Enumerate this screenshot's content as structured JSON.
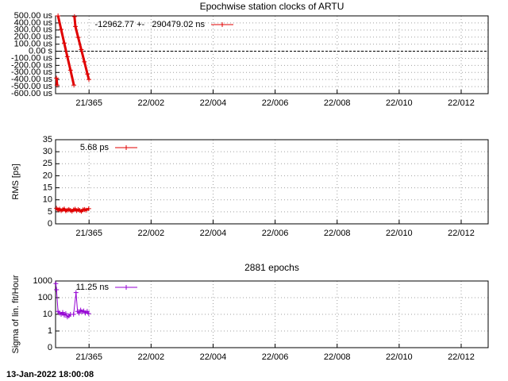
{
  "chart_data": [
    {
      "type": "line",
      "title": "Epochwise station clocks of ARTU",
      "x": [
        363.95,
        363.97,
        null,
        364.0,
        364.1,
        364.2,
        364.3,
        364.4,
        364.51,
        null,
        364.53,
        364.56,
        364.65,
        364.75,
        364.85,
        364.95,
        364.995
      ],
      "series": [
        {
          "name": "-12962.77 +-   290479.02 ns",
          "color": "#e00000",
          "values": [
            -380,
            -480,
            null,
            500,
            308,
            116,
            -76,
            -268,
            -480,
            null,
            490,
            350,
            195,
            23,
            -150,
            -322,
            -400
          ]
        }
      ],
      "xlim": [
        363.92,
        377.87
      ],
      "xticks": [
        {
          "value": 365,
          "label": "21/365"
        },
        {
          "value": 367,
          "label": "22/002"
        },
        {
          "value": 369,
          "label": "22/004"
        },
        {
          "value": 371,
          "label": "22/006"
        },
        {
          "value": 373,
          "label": "22/008"
        },
        {
          "value": 375,
          "label": "22/010"
        },
        {
          "value": 377,
          "label": "22/012"
        }
      ],
      "ylim": [
        -600,
        500
      ],
      "yticks": [
        {
          "value": 500,
          "label": "500.00 us"
        },
        {
          "value": 400,
          "label": "400.00 us"
        },
        {
          "value": 300,
          "label": "300.00 us"
        },
        {
          "value": 200,
          "label": "200.00 us"
        },
        {
          "value": 100,
          "label": "100.00 us"
        },
        {
          "value": 0,
          "label": "0.00 s"
        },
        {
          "value": -100,
          "label": "-100.00 us"
        },
        {
          "value": -200,
          "label": "-200.00 us"
        },
        {
          "value": -300,
          "label": "-300.00 us"
        },
        {
          "value": -400,
          "label": "-400.00 us"
        },
        {
          "value": -500,
          "label": "-500.00 us"
        },
        {
          "value": -600,
          "label": "-600.00 us"
        }
      ],
      "grid": true,
      "zeroaxis": true
    },
    {
      "type": "line",
      "ylabel": "RMS [ps]",
      "x": [
        363.95,
        364.0,
        364.05,
        364.1,
        364.15,
        364.2,
        364.25,
        364.3,
        364.35,
        364.4,
        364.45,
        364.5,
        364.55,
        364.6,
        364.65,
        364.7,
        364.75,
        364.8,
        364.85,
        364.9,
        364.99
      ],
      "series": [
        {
          "name": "5.68 ps",
          "color": "#e00000",
          "values": [
            6.5,
            5.8,
            6.1,
            5.5,
            5.9,
            6.2,
            5.4,
            5.7,
            6.0,
            5.6,
            5.3,
            5.8,
            6.1,
            5.5,
            5.9,
            5.6,
            5.2,
            5.8,
            6.0,
            5.7,
            6.3
          ]
        }
      ],
      "xlim": [
        363.92,
        377.87
      ],
      "xticks": [
        {
          "value": 365,
          "label": "21/365"
        },
        {
          "value": 367,
          "label": "22/002"
        },
        {
          "value": 369,
          "label": "22/004"
        },
        {
          "value": 371,
          "label": "22/006"
        },
        {
          "value": 373,
          "label": "22/008"
        },
        {
          "value": 375,
          "label": "22/010"
        },
        {
          "value": 377,
          "label": "22/012"
        }
      ],
      "ylim": [
        0,
        35
      ],
      "yticks": [
        0,
        5,
        10,
        15,
        20,
        25,
        30,
        35
      ],
      "grid": true
    },
    {
      "type": "line",
      "title": "2881 epochs",
      "ylabel": "Sigma of lin. fit/Hour",
      "x": [
        363.93,
        363.95,
        364.0,
        364.05,
        364.1,
        364.15,
        364.2,
        364.25,
        364.3,
        364.35,
        364.4,
        364.5,
        364.58,
        364.63,
        364.68,
        364.73,
        364.78,
        364.83,
        364.88,
        364.94,
        364.99
      ],
      "series": [
        {
          "name": "11.25 ns",
          "color": "#9400d3",
          "values": [
            700,
            300,
            15,
            12,
            10,
            13,
            9,
            11,
            7,
            8,
            10,
            10,
            200,
            15,
            12,
            18,
            14,
            16,
            12,
            15,
            11
          ]
        }
      ],
      "xlim": [
        363.92,
        377.87
      ],
      "xticks": [
        {
          "value": 365,
          "label": "21/365"
        },
        {
          "value": 367,
          "label": "22/002"
        },
        {
          "value": 369,
          "label": "22/004"
        },
        {
          "value": 371,
          "label": "22/006"
        },
        {
          "value": 373,
          "label": "22/008"
        },
        {
          "value": 375,
          "label": "22/010"
        },
        {
          "value": 377,
          "label": "22/012"
        }
      ],
      "ylim": [
        0.1,
        1000
      ],
      "yticks": [
        {
          "value": 0.1,
          "label": "0"
        },
        1,
        10,
        100,
        1000
      ],
      "log": true,
      "grid": true
    }
  ],
  "footer": "13-Jan-2022 18:00:08"
}
